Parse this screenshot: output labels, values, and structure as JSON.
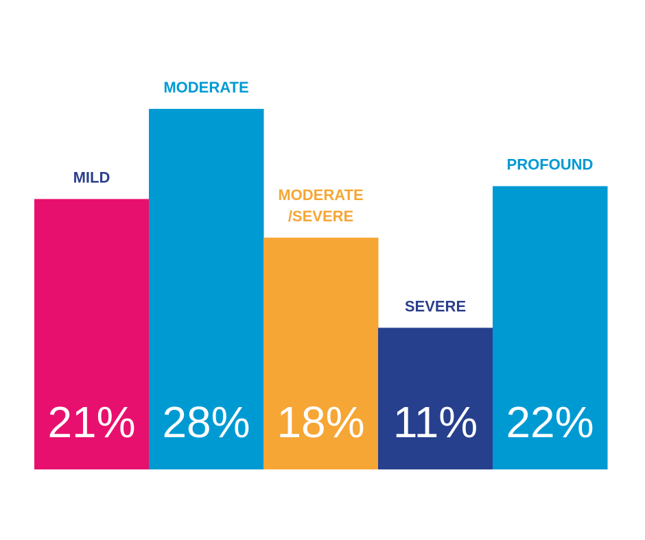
{
  "chart_data": {
    "type": "bar",
    "title": "",
    "xlabel": "",
    "ylabel": "",
    "ylim": [
      0,
      30
    ],
    "grid": false,
    "legend": "none",
    "value_suffix": "%",
    "categories": [
      [
        "MILD"
      ],
      [
        "MODERATE"
      ],
      [
        "MODERATE",
        "/SEVERE"
      ],
      [
        "SEVERE"
      ],
      [
        "PROFOUND"
      ]
    ],
    "values": [
      21,
      28,
      18,
      11,
      22
    ],
    "value_labels": [
      "21%",
      "28%",
      "18%",
      "11%",
      "22%"
    ],
    "bar_colors": [
      "#e8106e",
      "#009ad3",
      "#f6a635",
      "#26408d",
      "#009ad3"
    ],
    "label_colors": [
      "#2b3f8c",
      "#009ad3",
      "#f6a635",
      "#2b3f8c",
      "#009ad3"
    ]
  }
}
